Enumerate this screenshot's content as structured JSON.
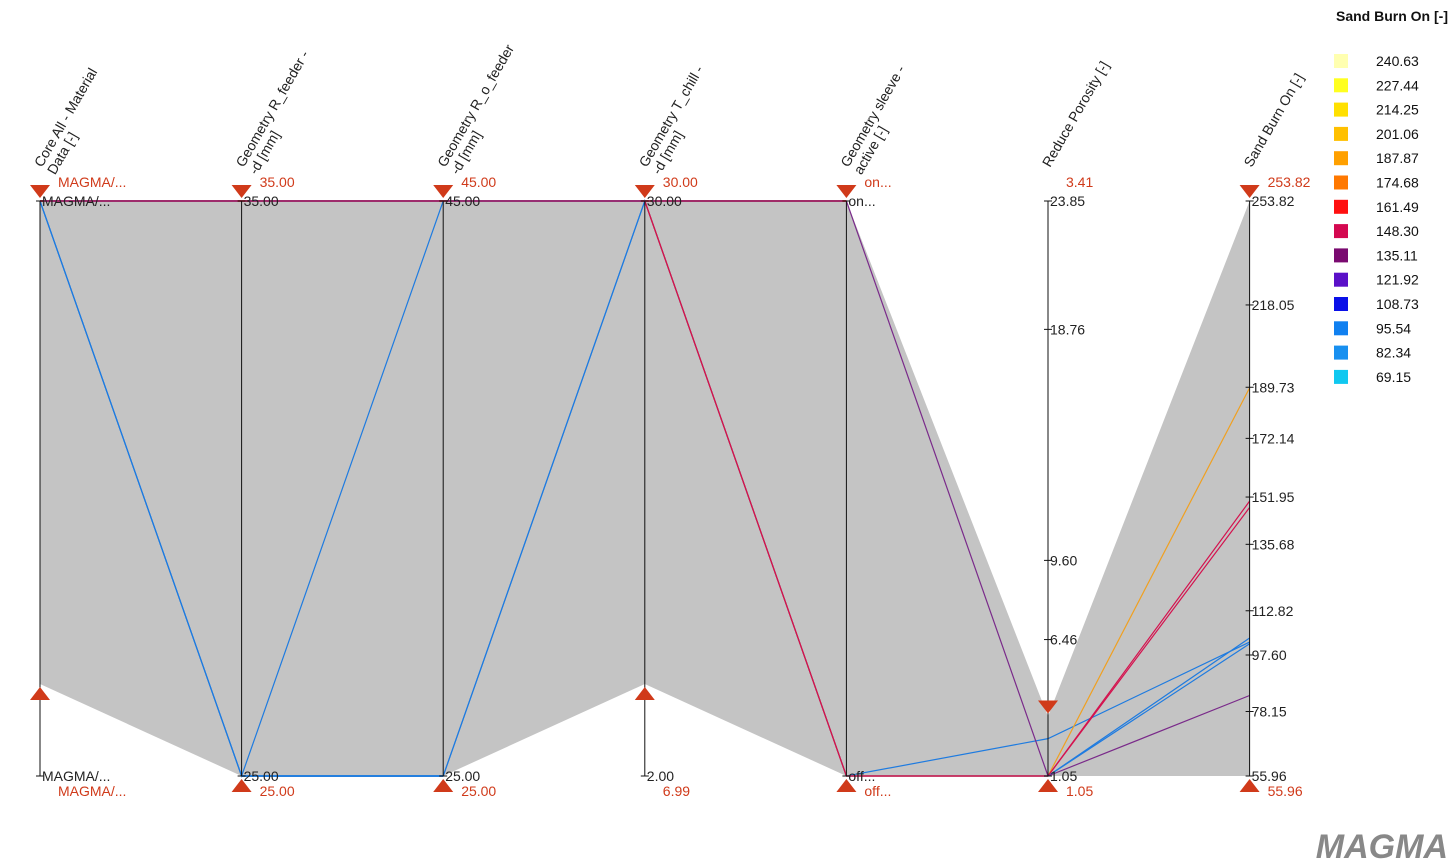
{
  "chart_data": {
    "type": "parallel-coordinates",
    "axes": [
      {
        "name": "axis-core-alloy",
        "title": [
          "Core All - Material",
          "Data [-]"
        ],
        "kind": "categorical",
        "ticks": [
          {
            "label": "MAGMA/...",
            "pos": 0
          },
          {
            "label": "MAGMA/...",
            "pos": 1
          }
        ],
        "filter_top": "MAGMA/...",
        "filter_bottom": "MAGMA/...",
        "handle_top": 1.0,
        "handle_bottom": 0.16
      },
      {
        "name": "axis-r-feeder",
        "title": [
          "Geometry R_feeder -",
          "-d [mm]"
        ],
        "kind": "numeric",
        "min": 25,
        "max": 35,
        "ticks": [
          {
            "label": "35.00",
            "value": 35
          },
          {
            "label": "25.00",
            "value": 25
          }
        ],
        "filter_top": "35.00",
        "filter_bottom": "25.00",
        "handle_top": 1.0,
        "handle_bottom": 0.0
      },
      {
        "name": "axis-r-o-feeder",
        "title": [
          "Geometry R_o_feeder",
          "-d [mm]"
        ],
        "kind": "numeric",
        "min": 25,
        "max": 45,
        "ticks": [
          {
            "label": "45.00",
            "value": 45
          },
          {
            "label": "25.00",
            "value": 25
          }
        ],
        "filter_top": "45.00",
        "filter_bottom": "25.00",
        "handle_top": 1.0,
        "handle_bottom": 0.0
      },
      {
        "name": "axis-t-chill",
        "title": [
          "Geometry T_chill -",
          "-d [mm]"
        ],
        "kind": "numeric",
        "min": 2,
        "max": 30,
        "ticks": [
          {
            "label": "30.00",
            "value": 30
          },
          {
            "label": "2.00",
            "value": 2
          }
        ],
        "filter_top": "30.00",
        "filter_bottom": "6.99",
        "handle_top": 1.0,
        "handle_bottom": 0.16
      },
      {
        "name": "axis-sleeve-active",
        "title": [
          "Geometry sleeve -",
          "active [-]"
        ],
        "kind": "categorical",
        "ticks": [
          {
            "label": "on...",
            "pos": 1
          },
          {
            "label": "off...",
            "pos": 0
          }
        ],
        "filter_top": "on...",
        "filter_bottom": "off...",
        "handle_top": 1.0,
        "handle_bottom": 0.0
      },
      {
        "name": "axis-reduce-porosity",
        "title": [
          "Reduce Porosity [-]"
        ],
        "kind": "numeric",
        "min": 1.05,
        "max": 23.85,
        "ticks": [
          {
            "label": "23.85",
            "value": 23.85
          },
          {
            "label": "18.76",
            "value": 18.76
          },
          {
            "label": "9.60",
            "value": 9.6
          },
          {
            "label": "6.46",
            "value": 6.46
          },
          {
            "label": "1.05",
            "value": 1.05
          }
        ],
        "filter_top": "3.41",
        "filter_bottom": "1.05",
        "handle_top": 0.1035,
        "handle_bottom": 0.0
      },
      {
        "name": "axis-sand-burn-on",
        "title": [
          "Sand Burn On [-]"
        ],
        "kind": "numeric",
        "min": 55.96,
        "max": 253.82,
        "ticks": [
          {
            "label": "253.82",
            "value": 253.82
          },
          {
            "label": "218.05",
            "value": 218.05
          },
          {
            "label": "189.73",
            "value": 189.73
          },
          {
            "label": "172.14",
            "value": 172.14
          },
          {
            "label": "151.95",
            "value": 151.95
          },
          {
            "label": "135.68",
            "value": 135.68
          },
          {
            "label": "112.82",
            "value": 112.82
          },
          {
            "label": "97.60",
            "value": 97.6
          },
          {
            "label": "78.15",
            "value": 78.15
          },
          {
            "label": "55.96",
            "value": 55.96
          }
        ],
        "filter_top": "253.82",
        "filter_bottom": "55.96",
        "handle_top": 1.0,
        "handle_bottom": 0.0
      }
    ],
    "lines": [
      {
        "color": "#1e7be0",
        "values": [
          1.0,
          0.0,
          1.0,
          1.0,
          0.0,
          0.0,
          0.24
        ]
      },
      {
        "color": "#1e7be0",
        "values": [
          1.0,
          0.0,
          0.0,
          1.0,
          0.0,
          0.065,
          0.233
        ]
      },
      {
        "color": "#1e7be0",
        "values": [
          1.0,
          0.0,
          0.0,
          1.0,
          0.0,
          0.0,
          0.23
        ]
      },
      {
        "color": "#f0a020",
        "values": [
          1.0,
          1.0,
          1.0,
          1.0,
          0.0,
          0.0,
          0.675
        ]
      },
      {
        "color": "#d4124e",
        "values": [
          1.0,
          1.0,
          1.0,
          1.0,
          0.0,
          0.0,
          0.478
        ]
      },
      {
        "color": "#d4124e",
        "values": [
          1.0,
          1.0,
          1.0,
          1.0,
          0.0,
          0.0,
          0.467
        ]
      },
      {
        "color": "#7a2a8a",
        "values": [
          1.0,
          1.0,
          1.0,
          1.0,
          1.0,
          0.0,
          0.14
        ]
      }
    ],
    "legend": {
      "title": "Sand Burn On [-]",
      "items": [
        {
          "label": "240.63",
          "color": "#ffffb0"
        },
        {
          "label": "227.44",
          "color": "#ffff20"
        },
        {
          "label": "214.25",
          "color": "#ffe000"
        },
        {
          "label": "201.06",
          "color": "#ffc000"
        },
        {
          "label": "187.87",
          "color": "#ffa000"
        },
        {
          "label": "174.68",
          "color": "#ff7800"
        },
        {
          "label": "161.49",
          "color": "#ff1010"
        },
        {
          "label": "148.30",
          "color": "#d40850"
        },
        {
          "label": "135.11",
          "color": "#7a0a70"
        },
        {
          "label": "121.92",
          "color": "#5a10c8"
        },
        {
          "label": "108.73",
          "color": "#0a10e8"
        },
        {
          "label": "95.54",
          "color": "#1080f0"
        },
        {
          "label": "82.34",
          "color": "#1890f0"
        },
        {
          "label": "69.15",
          "color": "#10c8f0"
        }
      ]
    },
    "colors": {
      "band": "#c4c4c4",
      "axis": "#111111",
      "filter": "#d03a1a",
      "top_edge": "#e03030",
      "bottom_edge": "#3a8ad8"
    }
  },
  "logo": {
    "text": "MAGMA"
  }
}
